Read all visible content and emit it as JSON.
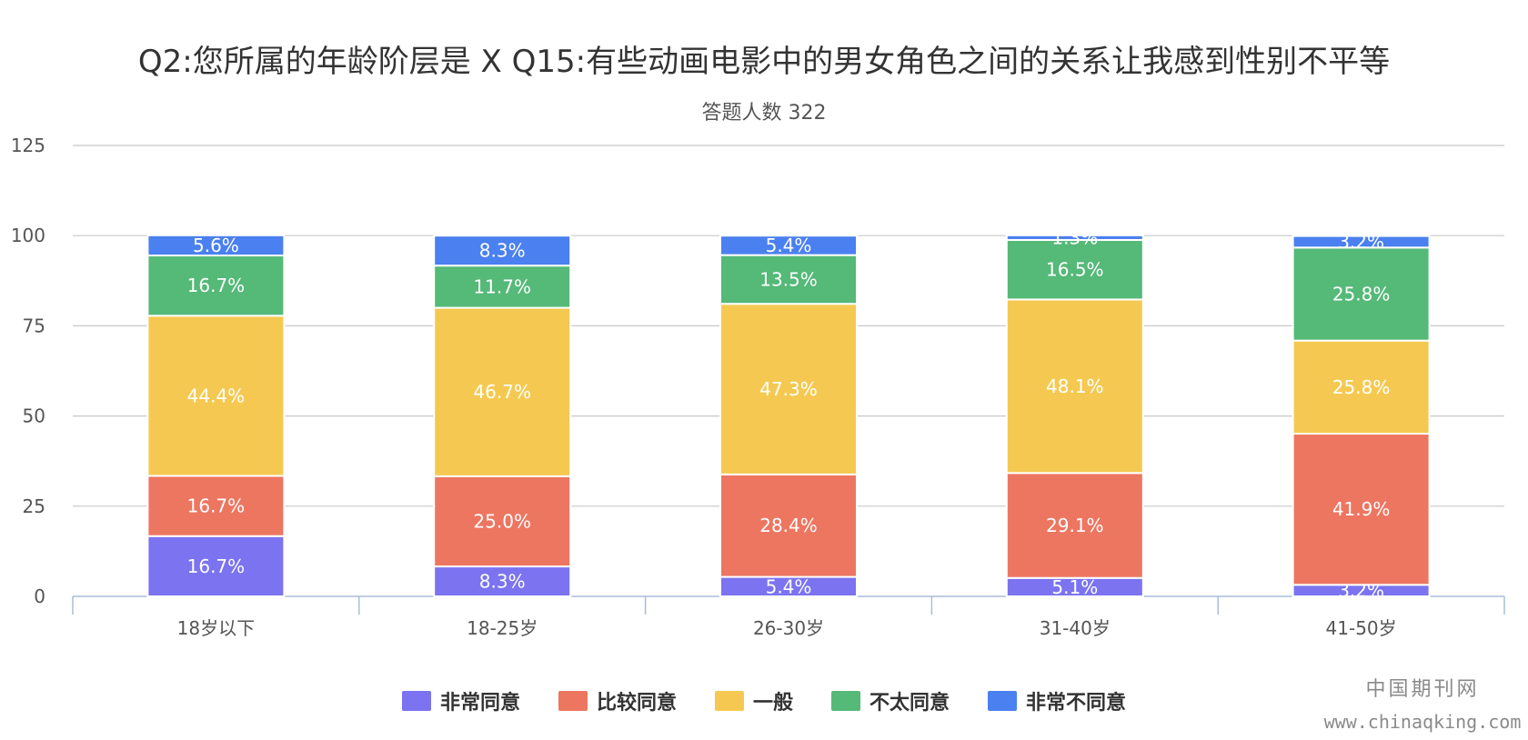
{
  "chart_data": {
    "type": "bar",
    "stacked": true,
    "title": "Q2:您所属的年龄阶层是 X Q15:有些动画电影中的男女角色之间的关系让我感到性别不平等",
    "subtitle": "答题人数 322",
    "categories": [
      "18岁以下",
      "18-25岁",
      "26-30岁",
      "31-40岁",
      "41-50岁"
    ],
    "ylim": [
      0,
      125
    ],
    "yticks": [
      0,
      25,
      50,
      75,
      100,
      125
    ],
    "grid": true,
    "legend_position": "bottom",
    "series": [
      {
        "name": "非常同意",
        "color": "#7b73f0",
        "values": [
          16.7,
          8.3,
          5.4,
          5.1,
          3.2
        ]
      },
      {
        "name": "比较同意",
        "color": "#ed7661",
        "values": [
          16.7,
          25.0,
          28.4,
          29.1,
          41.9
        ]
      },
      {
        "name": "一般",
        "color": "#f5c951",
        "values": [
          44.4,
          46.7,
          47.3,
          48.1,
          25.8
        ]
      },
      {
        "name": "不太同意",
        "color": "#55b978",
        "values": [
          16.7,
          11.7,
          13.5,
          16.5,
          25.8
        ]
      },
      {
        "name": "非常不同意",
        "color": "#4a80f0",
        "values": [
          5.6,
          8.3,
          5.4,
          1.3,
          3.2
        ]
      }
    ]
  },
  "watermark": {
    "name": "中国期刊网",
    "url": "www.chinaqking.com"
  }
}
